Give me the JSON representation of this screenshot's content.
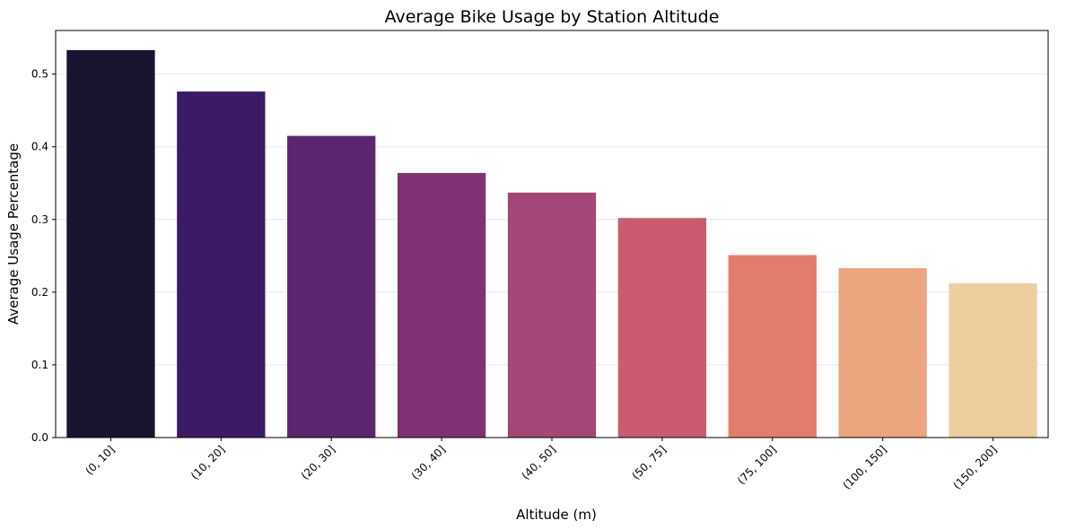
{
  "chart_data": {
    "type": "bar",
    "title": "Average Bike Usage by Station Altitude",
    "xlabel": "Altitude (m)",
    "ylabel": "Average Usage Percentage",
    "categories": [
      "(0, 10]",
      "(10, 20]",
      "(20, 30]",
      "(30, 40]",
      "(40, 50]",
      "(50, 75]",
      "(75, 100]",
      "(100, 150]",
      "(150, 200]"
    ],
    "values": [
      0.533,
      0.476,
      0.415,
      0.364,
      0.337,
      0.302,
      0.251,
      0.233,
      0.212
    ],
    "colors": [
      "#1a1431",
      "#3b1a66",
      "#5d2570",
      "#7e3275",
      "#a44677",
      "#cc5b6f",
      "#e27d6b",
      "#eca57e",
      "#eecd9f"
    ],
    "ylim": [
      0,
      0.56
    ],
    "yticks": [
      0.0,
      0.1,
      0.2,
      0.3,
      0.4,
      0.5
    ],
    "ytick_labels": [
      "0.0",
      "0.1",
      "0.2",
      "0.3",
      "0.4",
      "0.5"
    ],
    "grid": "y",
    "legend": "none"
  }
}
